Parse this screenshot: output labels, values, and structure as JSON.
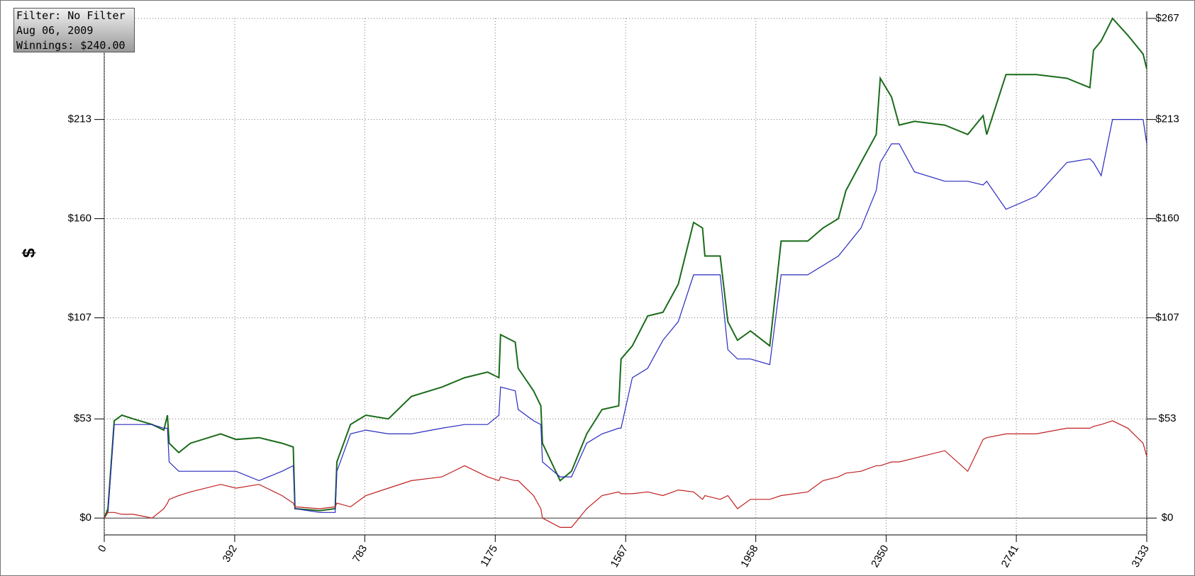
{
  "info": {
    "filter": "Filter: No Filter",
    "date": "Aug 06, 2009",
    "winnings": "Winnings: $240.00"
  },
  "chart_data": {
    "type": "line",
    "ylabel": "$",
    "x": [
      0,
      11,
      30,
      53,
      87,
      144,
      179,
      190,
      195,
      224,
      259,
      350,
      396,
      465,
      534,
      568,
      573,
      648,
      694,
      699,
      740,
      786,
      854,
      923,
      1015,
      1083,
      1152,
      1186,
      1191,
      1235,
      1244,
      1290,
      1312,
      1317,
      1370,
      1404,
      1450,
      1496,
      1546,
      1553,
      1587,
      1633,
      1679,
      1725,
      1771,
      1798,
      1805,
      1851,
      1874,
      1903,
      1942,
      2000,
      2034,
      2114,
      2160,
      2206,
      2229,
      2274,
      2320,
      2332,
      2366,
      2389,
      2435,
      2526,
      2595,
      2641,
      2652,
      2710,
      2801,
      2893,
      2962,
      2973,
      2996,
      3030,
      3076,
      3122,
      3133
    ],
    "series": [
      {
        "color": "#1a6b1a",
        "values": [
          0,
          5,
          52,
          55,
          53,
          50,
          47,
          55,
          40,
          35,
          40,
          45,
          42,
          43,
          40,
          38,
          5,
          4,
          5,
          30,
          50,
          55,
          53,
          65,
          70,
          75,
          78,
          75,
          98,
          94,
          80,
          68,
          60,
          40,
          20,
          25,
          45,
          58,
          60,
          85,
          92,
          108,
          110,
          125,
          158,
          155,
          140,
          140,
          105,
          95,
          100,
          92,
          148,
          148,
          155,
          160,
          175,
          190,
          205,
          235,
          225,
          210,
          212,
          210,
          205,
          215,
          205,
          237,
          237,
          235,
          230,
          250,
          255,
          267,
          258,
          248,
          240
        ]
      },
      {
        "color": "#2a2ac0",
        "values": [
          0,
          3,
          50,
          50,
          50,
          50,
          48,
          48,
          30,
          25,
          25,
          25,
          25,
          20,
          25,
          28,
          5,
          3,
          3,
          25,
          45,
          47,
          45,
          45,
          48,
          50,
          50,
          55,
          70,
          68,
          58,
          52,
          50,
          30,
          22,
          22,
          40,
          45,
          48,
          48,
          75,
          80,
          95,
          105,
          130,
          130,
          130,
          130,
          90,
          85,
          85,
          82,
          130,
          130,
          135,
          140,
          145,
          155,
          175,
          190,
          200,
          200,
          185,
          180,
          180,
          178,
          180,
          165,
          172,
          190,
          192,
          190,
          183,
          213,
          213,
          213,
          200
        ]
      },
      {
        "color": "#c02020",
        "values": [
          0,
          3,
          3,
          2,
          2,
          0,
          5,
          8,
          10,
          12,
          14,
          18,
          16,
          18,
          12,
          8,
          6,
          5,
          6,
          8,
          6,
          12,
          16,
          20,
          22,
          28,
          22,
          20,
          22,
          20,
          20,
          12,
          5,
          0,
          -5,
          -5,
          5,
          12,
          14,
          13,
          13,
          14,
          12,
          15,
          14,
          10,
          12,
          10,
          12,
          5,
          10,
          10,
          12,
          14,
          20,
          22,
          24,
          25,
          28,
          28,
          30,
          30,
          32,
          36,
          25,
          42,
          43,
          45,
          45,
          48,
          48,
          49,
          50,
          52,
          48,
          40,
          33
        ]
      }
    ],
    "xlim": [
      0,
      3133
    ],
    "xticks": [
      0,
      392,
      783,
      1175,
      1567,
      1958,
      2350,
      2741,
      3133
    ],
    "ylim": [
      -9,
      267
    ],
    "yticks": [
      {
        "value": 0,
        "label": "$0"
      },
      {
        "value": 53,
        "label": "$53"
      },
      {
        "value": 107,
        "label": "$107"
      },
      {
        "value": 160,
        "label": "$160"
      },
      {
        "value": 213,
        "label": "$213"
      },
      {
        "value": 267,
        "label": "$267"
      }
    ],
    "grid": true
  }
}
